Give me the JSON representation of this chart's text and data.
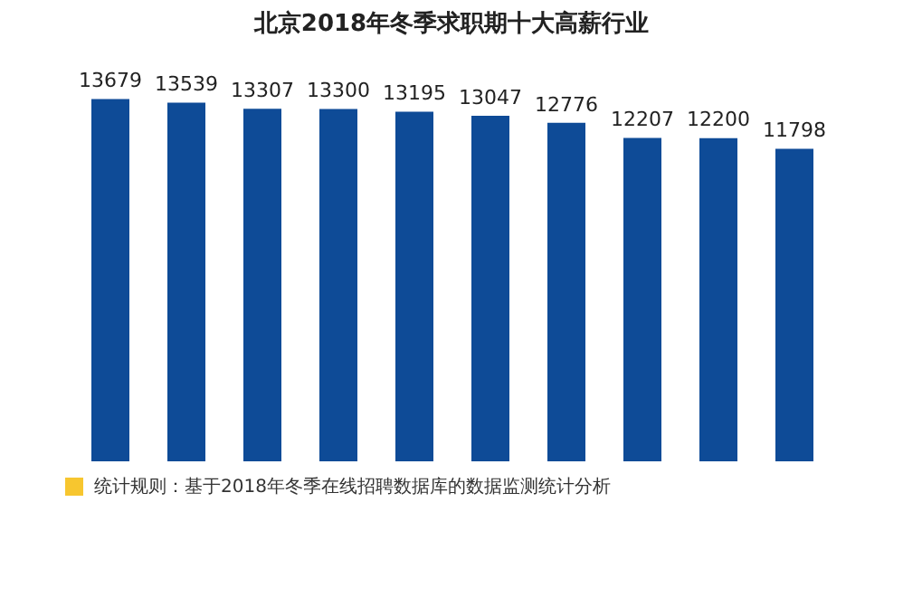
{
  "chart_data": {
    "type": "bar",
    "title": "北京2018年冬季求职期十大高薪行业",
    "categories": [
      null,
      null,
      null,
      null,
      null,
      null,
      null,
      null,
      null,
      null
    ],
    "values": [
      13679,
      13539,
      13307,
      13300,
      13195,
      13047,
      12776,
      12207,
      12200,
      11798
    ],
    "color": "#0e4b97",
    "data_labels": true,
    "legend": false,
    "annotations": [
      "统计规则：基于2018年冬季在线招聘数据库的数据监测统计分析"
    ]
  }
}
